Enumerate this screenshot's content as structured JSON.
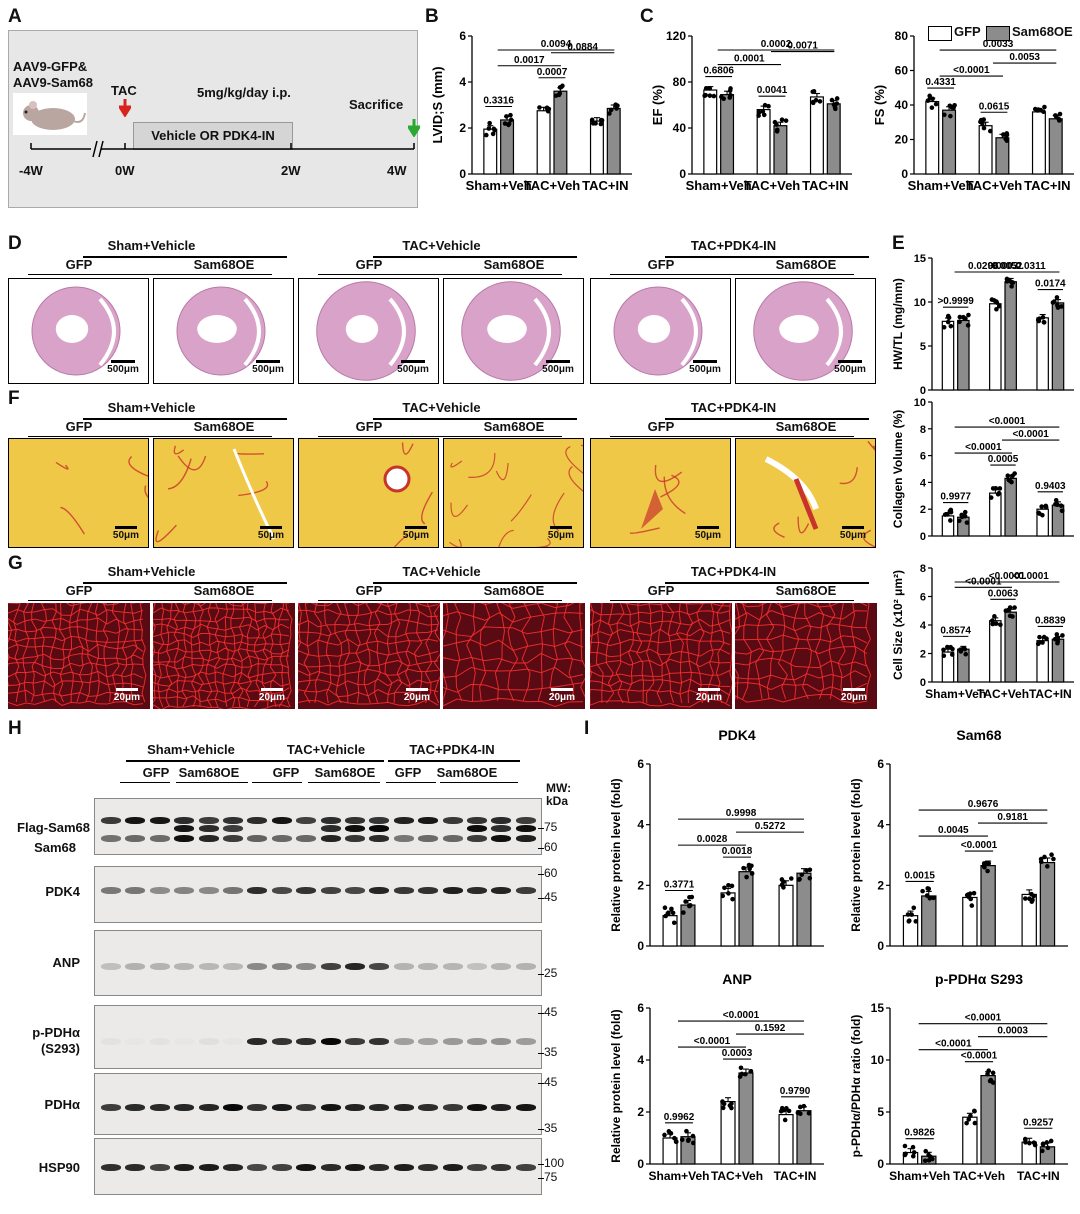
{
  "panels": {
    "A": "A",
    "B": "B",
    "C": "C",
    "D": "D",
    "E": "E",
    "F": "F",
    "G": "G",
    "H": "H",
    "I": "I"
  },
  "schematic": {
    "virus_line1": "AAV9-GFP&",
    "virus_line2": "AAV9-Sam68",
    "tac": "TAC",
    "dose": "5mg/kg/day i.p.",
    "treatment": "Vehicle OR PDK4-IN",
    "sacrifice": "Sacrifice",
    "timepoints": [
      "-4W",
      "0W",
      "2W",
      "4W"
    ]
  },
  "legend": {
    "gfp": "GFP",
    "sam68": "Sam68OE"
  },
  "groups": {
    "sham": "Sham+Vehicle",
    "tac": "TAC+Vehicle",
    "tacin": "TAC+PDK4-IN",
    "gfp": "GFP",
    "sam68": "Sam68OE"
  },
  "scalebars": {
    "he": "500μm",
    "sr": "50μm",
    "if": "20μm"
  },
  "western": {
    "sublabels": [
      "Flag-Sam68",
      "Sam68"
    ],
    "labels": [
      "PDK4",
      "ANP",
      "p-PDHα",
      "(S293)",
      "PDHα",
      "HSP90"
    ],
    "mw_header": "MW:\nkDa",
    "mw": {
      "b1": [
        "75",
        "60"
      ],
      "b2": [
        "60",
        "45"
      ],
      "b3": [
        "25"
      ],
      "b4": [
        "45",
        "35"
      ],
      "b5": [
        "45",
        "35"
      ],
      "b6": [
        "100",
        "75"
      ]
    }
  },
  "colors": {
    "gfp": "#ffffff",
    "sam68": "#8c8c8c",
    "he": "#d9a2c8",
    "sirius": "#f0c848",
    "sirius_red": "#c8342c",
    "if_bg": "#5a0a12",
    "if_line": "#ff3030"
  },
  "chart_data": [
    {
      "id": "B",
      "type": "bar",
      "categories": [
        "Sham+Veh",
        "TAC+Veh",
        "TAC+IN"
      ],
      "ylabel": "LVID;S (mm)",
      "ylim": [
        0,
        6
      ],
      "yticks": [
        0,
        2,
        4,
        6
      ],
      "series": [
        {
          "name": "GFP",
          "values": [
            1.95,
            2.75,
            2.3
          ]
        },
        {
          "name": "Sam68OE",
          "values": [
            2.35,
            3.6,
            2.85
          ]
        }
      ],
      "annotations": [
        "0.3316",
        "0.0017",
        "0.0007",
        "0.0884",
        "0.0094"
      ]
    },
    {
      "id": "C1",
      "type": "bar",
      "categories": [
        "Sham+Veh",
        "TAC+Veh",
        "TAC+IN"
      ],
      "ylabel": "EF (%)",
      "ylim": [
        0,
        120
      ],
      "yticks": [
        0,
        40,
        80,
        120
      ],
      "series": [
        {
          "name": "GFP",
          "values": [
            73,
            56,
            67
          ]
        },
        {
          "name": "Sam68OE",
          "values": [
            69,
            42,
            61
          ]
        }
      ],
      "annotations": [
        "0.6806",
        "0.0001",
        "0.0041",
        "0.0071",
        "0.0002"
      ]
    },
    {
      "id": "C2",
      "type": "bar",
      "categories": [
        "Sham+Veh",
        "TAC+Veh",
        "TAC+IN"
      ],
      "ylabel": "FS (%)",
      "ylim": [
        0,
        80
      ],
      "yticks": [
        0,
        20,
        40,
        60,
        80
      ],
      "series": [
        {
          "name": "GFP",
          "values": [
            42,
            28,
            36
          ]
        },
        {
          "name": "Sam68OE",
          "values": [
            37,
            21,
            32
          ]
        }
      ],
      "annotations": [
        "0.4331",
        "<0.0001",
        "0.0615",
        "0.0053",
        "0.0033"
      ]
    },
    {
      "id": "E1",
      "type": "bar",
      "categories": [
        "Sham+Veh",
        "TAC+Veh",
        "TAC+IN"
      ],
      "ylabel": "HW/TL (mg/mm)",
      "ylim": [
        0,
        15
      ],
      "yticks": [
        0,
        5,
        10,
        15
      ],
      "series": [
        {
          "name": "GFP",
          "values": [
            7.8,
            9.8,
            8.2
          ]
        },
        {
          "name": "Sam68OE",
          "values": [
            7.9,
            12.3,
            9.9
          ]
        }
      ],
      "annotations": [
        ">0.9999",
        "0.0296",
        "0.0003",
        "0.0311",
        "0.0052",
        "0.0174"
      ]
    },
    {
      "id": "E2",
      "type": "bar",
      "categories": [
        "Sham+Veh",
        "TAC+Veh",
        "TAC+IN"
      ],
      "ylabel": "Collagen Volume (%)",
      "ylim": [
        0,
        10
      ],
      "yticks": [
        0,
        2,
        4,
        6,
        8,
        10
      ],
      "series": [
        {
          "name": "GFP",
          "values": [
            1.5,
            3.2,
            2.0
          ]
        },
        {
          "name": "Sam68OE",
          "values": [
            1.4,
            4.3,
            2.3
          ]
        }
      ],
      "annotations": [
        "0.9977",
        "<0.0001",
        "0.0005",
        "<0.0001",
        "<0.0001",
        "0.9403"
      ]
    },
    {
      "id": "E3",
      "type": "bar",
      "categories": [
        "Sham+Veh",
        "TAC+Veh",
        "TAC+IN"
      ],
      "ylabel": "Cell Size (x10² μm²)",
      "ylim": [
        0,
        8
      ],
      "yticks": [
        0,
        2,
        4,
        6,
        8
      ],
      "series": [
        {
          "name": "GFP",
          "values": [
            2.1,
            4.3,
            2.9
          ]
        },
        {
          "name": "Sam68OE",
          "values": [
            2.3,
            4.9,
            3.0
          ]
        }
      ],
      "annotations": [
        "0.8574",
        "<0.0001",
        "0.0063",
        "<0.0001",
        "<0.0001",
        "0.8839"
      ]
    },
    {
      "id": "I1",
      "type": "bar",
      "title": "PDK4",
      "categories": [
        "Sham+Veh",
        "TAC+Veh",
        "TAC+IN"
      ],
      "ylabel": "Relative protein level (fold)",
      "ylim": [
        0,
        6
      ],
      "yticks": [
        0,
        2,
        4,
        6
      ],
      "series": [
        {
          "name": "GFP",
          "values": [
            1.0,
            1.75,
            2.0
          ]
        },
        {
          "name": "Sam68OE",
          "values": [
            1.35,
            2.45,
            2.4
          ]
        }
      ],
      "annotations": [
        "0.3771",
        "0.0028",
        "0.0018",
        "0.5272",
        "0.9998"
      ]
    },
    {
      "id": "I2",
      "type": "bar",
      "title": "Sam68",
      "categories": [
        "Sham+Veh",
        "TAC+Veh",
        "TAC+IN"
      ],
      "ylabel": "Relative protein level (fold)",
      "ylim": [
        0,
        6
      ],
      "yticks": [
        0,
        2,
        4,
        6
      ],
      "series": [
        {
          "name": "GFP",
          "values": [
            1.0,
            1.6,
            1.7
          ]
        },
        {
          "name": "Sam68OE",
          "values": [
            1.65,
            2.65,
            2.75
          ]
        }
      ],
      "annotations": [
        "0.0015",
        "0.0045",
        "<0.0001",
        "0.9181",
        "0.9676"
      ]
    },
    {
      "id": "I3",
      "type": "bar",
      "title": "ANP",
      "categories": [
        "Sham+Veh",
        "TAC+Veh",
        "TAC+IN"
      ],
      "ylabel": "Relative protein level (fold)",
      "ylim": [
        0,
        6
      ],
      "yticks": [
        0,
        2,
        4,
        6
      ],
      "series": [
        {
          "name": "GFP",
          "values": [
            1.0,
            2.4,
            1.9
          ]
        },
        {
          "name": "Sam68OE",
          "values": [
            1.05,
            3.5,
            2.05
          ]
        }
      ],
      "annotations": [
        "0.9962",
        "<0.0001",
        "0.0003",
        "0.1592",
        "<0.0001",
        "0.9790"
      ]
    },
    {
      "id": "I4",
      "type": "bar",
      "title": "p-PDHα S293",
      "categories": [
        "Sham+Veh",
        "TAC+Veh",
        "TAC+IN"
      ],
      "ylabel": "p-PDHα/PDHα ratio (fold)",
      "ylim": [
        0,
        15
      ],
      "yticks": [
        0,
        5,
        10,
        15
      ],
      "series": [
        {
          "name": "GFP",
          "values": [
            1.1,
            4.5,
            2.1
          ]
        },
        {
          "name": "Sam68OE",
          "values": [
            0.75,
            8.5,
            1.65
          ]
        }
      ],
      "annotations": [
        "0.9826",
        "<0.0001",
        "<0.0001",
        "0.0003",
        "<0.0001",
        "0.9257"
      ]
    }
  ]
}
